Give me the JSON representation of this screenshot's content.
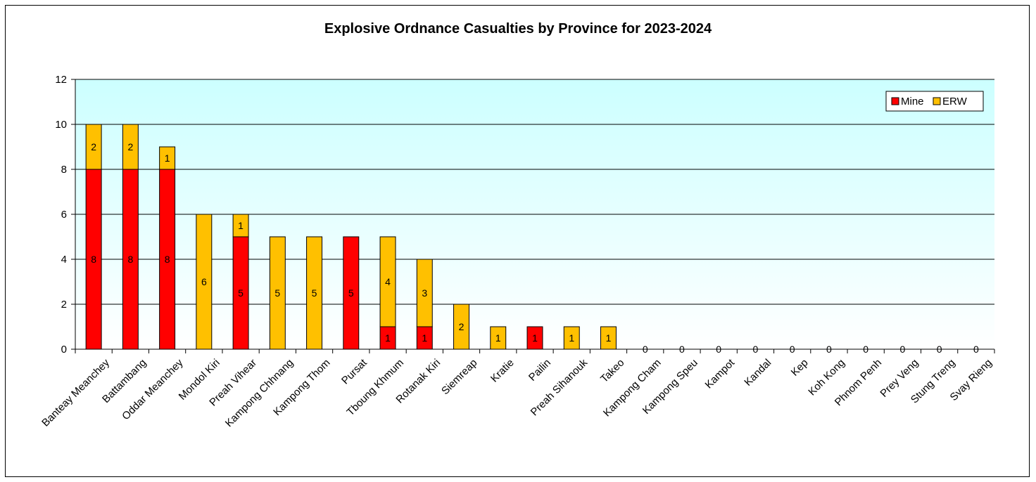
{
  "chart_data": {
    "type": "bar",
    "stacked": true,
    "title": "Explosive Ordnance Casualties by Province for 2023-2024",
    "xlabel": "",
    "ylabel": "",
    "ylim": [
      0,
      12
    ],
    "yticks": [
      0,
      2,
      4,
      6,
      8,
      10,
      12
    ],
    "grid": true,
    "legend_position": "top-right",
    "categories": [
      "Banteay Meanchey",
      "Battambang",
      "Oddar Meanchey",
      "Mondol Kiri",
      "Preah Vihear",
      "Kampong Chhnang",
      "Kampong Thom",
      "Pursat",
      "Tboung Khmum",
      "Rotanak Kiri",
      "Siemreap",
      "Kratie",
      "Pailin",
      "Preah Sihanouk",
      "Takeo",
      "Kampong Cham",
      "Kampong Speu",
      "Kampot",
      "Kandal",
      "Kep",
      "Koh Kong",
      "Phnom Penh",
      "Prey Veng",
      "Stung Treng",
      "Svay Rieng"
    ],
    "series": [
      {
        "name": "Mine",
        "color": "#FF0000",
        "values": [
          8,
          8,
          8,
          0,
          5,
          0,
          0,
          5,
          1,
          1,
          0,
          0,
          1,
          0,
          0,
          0,
          0,
          0,
          0,
          0,
          0,
          0,
          0,
          0,
          0
        ]
      },
      {
        "name": "ERW",
        "color": "#FFC000",
        "values": [
          2,
          2,
          1,
          6,
          1,
          5,
          5,
          0,
          4,
          3,
          2,
          1,
          0,
          1,
          1,
          0,
          0,
          0,
          0,
          0,
          0,
          0,
          0,
          0,
          0
        ]
      }
    ],
    "plot_background": [
      "#CCFFFF",
      "#FFFFFF"
    ]
  }
}
